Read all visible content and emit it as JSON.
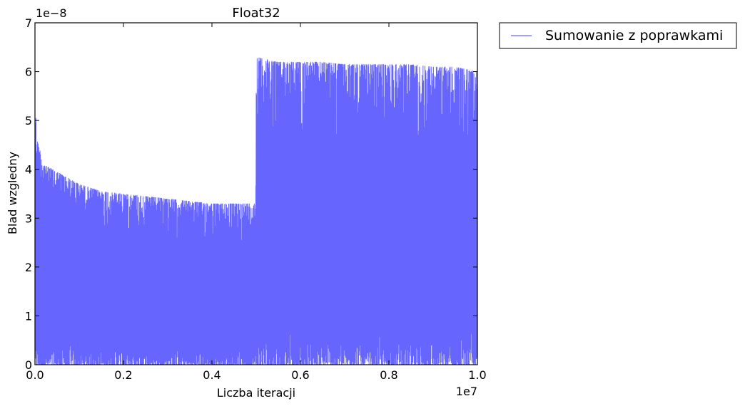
{
  "chart_data": {
    "type": "line",
    "title": "Float32",
    "xlabel": "Liczba iteracji",
    "ylabel": "Blad wzgledny",
    "x_offset_text": "1e7",
    "y_offset_text": "1e−8",
    "xlim": [
      0,
      1.0
    ],
    "ylim": [
      0,
      7
    ],
    "x_ticks": [
      0.0,
      0.2,
      0.4,
      0.6,
      0.8,
      1.0
    ],
    "x_tick_labels": [
      "0.0",
      "0.2",
      "0.4",
      "0.6",
      "0.8",
      "1.0"
    ],
    "y_ticks": [
      0,
      1,
      2,
      3,
      4,
      5,
      6,
      7
    ],
    "y_tick_labels": [
      "0",
      "1",
      "2",
      "3",
      "4",
      "5",
      "6",
      "7"
    ],
    "grid": false,
    "legend": {
      "placement": "outside-upper-right"
    },
    "series": [
      {
        "name": "Sumowanie z poprawkami",
        "color": "#6666ff",
        "x": [
          0.0,
          0.005,
          0.02,
          0.05,
          0.1,
          0.15,
          0.2,
          0.25,
          0.3,
          0.35,
          0.4,
          0.45,
          0.499,
          0.5,
          0.55,
          0.6,
          0.65,
          0.7,
          0.75,
          0.8,
          0.85,
          0.9,
          0.95,
          1.0
        ],
        "upper": [
          5.4,
          4.6,
          4.1,
          3.95,
          3.7,
          3.55,
          3.5,
          3.45,
          3.4,
          3.35,
          3.3,
          3.3,
          3.3,
          6.3,
          6.2,
          6.2,
          6.2,
          6.15,
          6.15,
          6.15,
          6.15,
          6.1,
          6.1,
          6.0
        ],
        "lower": [
          0.0,
          0.0,
          0.0,
          0.0,
          0.0,
          0.0,
          0.0,
          0.0,
          0.0,
          0.0,
          0.0,
          0.0,
          0.0,
          0.0,
          0.0,
          0.0,
          0.0,
          0.0,
          0.0,
          0.0,
          0.0,
          0.0,
          0.0,
          0.0
        ]
      }
    ]
  }
}
